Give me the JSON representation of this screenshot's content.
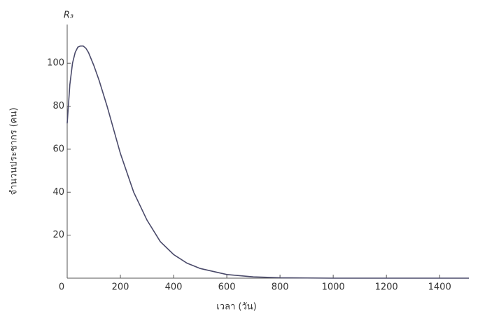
{
  "chart_data": {
    "type": "line",
    "x_label": "เวลา (วัน)",
    "y_label": "จำนวนประชากร (คน)",
    "y_axis_name": "R₃",
    "x": [
      0,
      10,
      20,
      30,
      40,
      50,
      60,
      70,
      80,
      100,
      120,
      150,
      200,
      250,
      300,
      350,
      400,
      450,
      500,
      600,
      700,
      800,
      1000,
      1200,
      1400,
      1510
    ],
    "values": [
      72,
      90,
      100,
      105,
      107.5,
      108,
      108,
      107,
      105,
      99,
      92,
      80,
      58,
      40,
      27,
      17,
      11,
      7,
      4.5,
      1.7,
      0.6,
      0.2,
      0,
      0,
      0,
      0
    ],
    "color": "#4a4a6a",
    "xlim": [
      0,
      1510
    ],
    "ylim": [
      0,
      118
    ],
    "xticks": [
      0,
      200,
      400,
      600,
      800,
      1000,
      1200,
      1400
    ],
    "yticks": [
      0,
      20,
      40,
      60,
      80,
      100
    ],
    "grid": false
  }
}
